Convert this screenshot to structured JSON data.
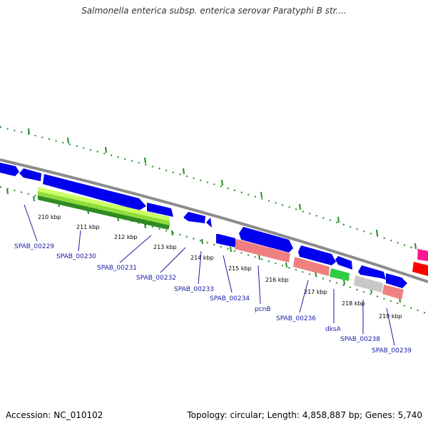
{
  "title": "Salmonella enterica subsp. enterica serovar Paratyphi B str....",
  "footer": {
    "accession": "Accession: NC_010102",
    "topology": "Topology: circular; Length: 4,858,887 bp; Genes: 5,740"
  },
  "kbp_ticks": [
    "210 kbp",
    "211 kbp",
    "212 kbp",
    "213 kbp",
    "214 kbp",
    "215 kbp",
    "216 kbp",
    "217 kbp",
    "218 kbp",
    "219 kbp"
  ],
  "gene_labels": [
    "SPAB_00229",
    "SPAB_00230",
    "SPAB_00231",
    "SPAB_00232",
    "SPAB_00233",
    "SPAB_00234",
    "pcnB",
    "SPAB_00236",
    "dksA",
    "SPAB_00238",
    "SPAB_00239"
  ],
  "colors": {
    "backbone": "#888888",
    "forward_gene": "#0000ee",
    "rna_pink": "#f08080",
    "highlight_green": "#2ecc40",
    "gray_gene": "#c8c8c8",
    "magenta": "#ff1493",
    "red": "#ff0000",
    "gc_track": "#228b22",
    "label_text": "#1a1aa6"
  }
}
